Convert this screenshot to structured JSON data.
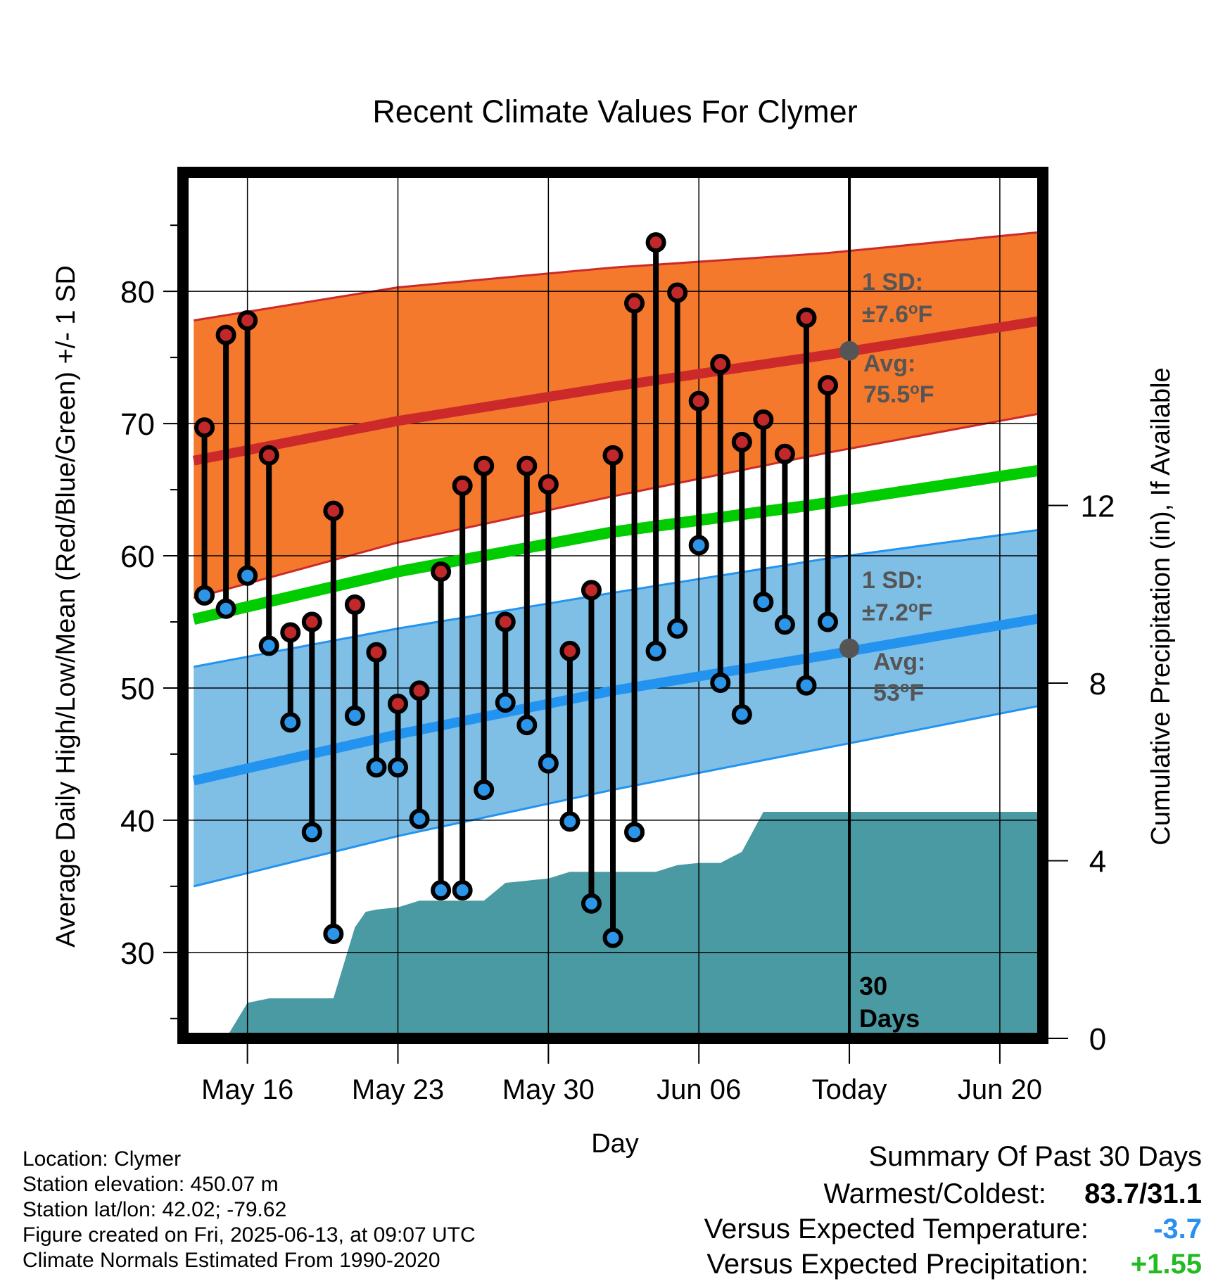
{
  "chart_data": {
    "type": "line",
    "title": "Recent Climate Values For Clymer",
    "xlabel": "Day",
    "ylabel": "Average Daily High/Low/Mean (Red/Blue/Green) +/- 1 SD",
    "y2label": "Cumulative Precipitation (in), If Available",
    "x_ticks": [
      "May 16",
      "May 23",
      "May 30",
      "Jun 06",
      "Today",
      "Jun 20"
    ],
    "x_tick_days": [
      16,
      23,
      30,
      37,
      44,
      51
    ],
    "xlim": [
      13,
      53
    ],
    "ylim": [
      23.5,
      89
    ],
    "y_ticks": [
      30,
      40,
      50,
      60,
      70,
      80
    ],
    "y2lim": [
      0,
      19.5
    ],
    "y2_ticks": [
      0,
      4,
      8,
      12
    ],
    "grid": true,
    "colors": {
      "high": "#cc2a2a",
      "high_band": "#f5792c",
      "low": "#2393f0",
      "low_band": "#7fbfe6",
      "mean": "#00cc00",
      "precip": "#4a9aa3",
      "marker_high": "#c0282a",
      "marker_low": "#2d95e8",
      "today_dot": "#555555"
    },
    "normals": {
      "days": [
        13.5,
        23,
        33,
        43,
        53
      ],
      "high_mean": [
        67.2,
        70.2,
        72.8,
        75.2,
        77.8
      ],
      "high_upper": [
        77.8,
        80.3,
        81.8,
        82.9,
        84.5
      ],
      "high_lower": [
        56.8,
        61.0,
        64.5,
        67.8,
        70.8
      ],
      "low_mean": [
        43.0,
        46.5,
        49.8,
        52.5,
        55.3
      ],
      "low_upper": [
        51.6,
        54.5,
        57.2,
        59.8,
        62.0
      ],
      "low_lower": [
        35.0,
        38.8,
        42.3,
        45.5,
        48.7
      ],
      "mean": [
        55.2,
        58.8,
        61.8,
        64.0,
        66.5
      ]
    },
    "observed": {
      "days": [
        14,
        15,
        16,
        17,
        18,
        19,
        20,
        21,
        22,
        23,
        24,
        25,
        26,
        27,
        28,
        29,
        30,
        31,
        32,
        33,
        34,
        35,
        36,
        37,
        38,
        39,
        40,
        41,
        42,
        43
      ],
      "highs": [
        69.7,
        76.7,
        77.8,
        67.6,
        54.2,
        55.0,
        63.4,
        56.3,
        52.7,
        48.8,
        49.8,
        58.8,
        65.3,
        66.8,
        55.0,
        66.8,
        65.4,
        52.8,
        57.4,
        67.6,
        79.1,
        83.7,
        79.9,
        71.7,
        74.5,
        68.6,
        70.3,
        67.7,
        78.0,
        72.9
      ],
      "lows": [
        57.0,
        56.0,
        58.5,
        53.2,
        47.4,
        39.1,
        31.4,
        47.9,
        44.0,
        44.0,
        40.1,
        34.7,
        34.7,
        42.3,
        48.9,
        47.2,
        44.3,
        39.9,
        33.7,
        31.1,
        39.1,
        52.8,
        54.5,
        60.8,
        50.4,
        48.0,
        56.5,
        54.8,
        50.2,
        55.0
      ]
    },
    "precip_cumulative": {
      "days": [
        15,
        16,
        17,
        18,
        19,
        20,
        21,
        21.5,
        22,
        23,
        24,
        25,
        26,
        27,
        28,
        29,
        30,
        31,
        32,
        33,
        34,
        35,
        36,
        37,
        38,
        39,
        40,
        53
      ],
      "values": [
        0.0,
        0.8,
        0.9,
        0.9,
        0.9,
        0.9,
        2.5,
        2.85,
        2.9,
        2.95,
        3.1,
        3.1,
        3.1,
        3.1,
        3.5,
        3.55,
        3.6,
        3.75,
        3.75,
        3.75,
        3.75,
        3.75,
        3.9,
        3.95,
        3.95,
        4.2,
        5.1,
        5.1
      ]
    },
    "annotations": {
      "high_sd": "1 SD:",
      "high_sd_value": "±7.6",
      "high_avg_label": "Avg:",
      "high_avg_value": "75.5",
      "high_avg_y": 75.5,
      "low_sd": "1 SD:",
      "low_sd_value": "±7.2",
      "low_avg_label": "Avg:",
      "low_avg_value": "53",
      "low_avg_y": 53,
      "unit_degree": "o",
      "unit_f": "F",
      "today_day": 44,
      "days_count": "30",
      "days_word": "Days"
    }
  },
  "meta": {
    "location": "Location: Clymer",
    "elevation": "Station elevation: 450.07 m",
    "latlon": "Station lat/lon: 42.02; -79.62",
    "created": "Figure created on Fri, 2025-06-13, at 09:07 UTC",
    "normals": "Climate Normals Estimated From 1990-2020"
  },
  "summary": {
    "title": "Summary Of Past 30 Days",
    "warmest_label": "Warmest/Coldest:",
    "warmest_value": "83.7/31.1",
    "temp_label": "Versus Expected Temperature:",
    "temp_value": "-3.7",
    "temp_color": "#2a8ff0",
    "precip_label": "Versus Expected Precipitation:",
    "precip_value": "+1.55",
    "precip_color": "#22bb22"
  }
}
